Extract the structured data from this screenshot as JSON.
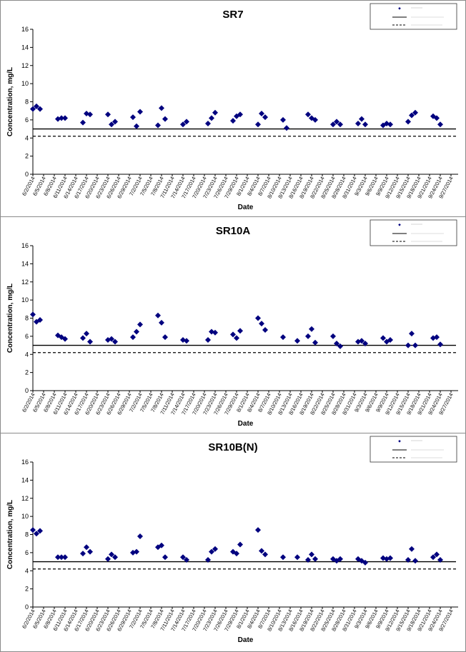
{
  "page": {
    "background": "#ffffff"
  },
  "colors": {
    "marker": "#00007f",
    "line": "#000000",
    "frame": "#8a8a8a"
  },
  "chart_data": [
    {
      "type": "scatter",
      "title": "SR7",
      "xlabel": "Date",
      "ylabel": "Concentration, mg/L",
      "ylim": [
        0,
        16
      ],
      "yticks": [
        0,
        2,
        4,
        6,
        8,
        10,
        12,
        14,
        16
      ],
      "grid": false,
      "legend_position": "top-right",
      "x_tick_labels": [
        "6/2/2014",
        "6/5/2014",
        "6/8/2014",
        "6/11/2014",
        "6/14/2014",
        "6/17/2014",
        "6/20/2014",
        "6/23/2014",
        "6/26/2014",
        "6/29/2014",
        "7/2/2014",
        "7/5/2014",
        "7/8/2014",
        "7/11/2014",
        "7/14/2014",
        "7/17/2014",
        "7/20/2014",
        "7/23/2014",
        "7/26/2014",
        "7/29/2014",
        "8/1/2014",
        "8/4/2014",
        "8/7/2014",
        "8/10/2014",
        "8/13/2014",
        "8/16/2014",
        "8/19/2014",
        "8/22/2014",
        "8/25/2014",
        "8/28/2014",
        "8/31/2014",
        "9/3/2014",
        "9/6/2014",
        "9/9/2014",
        "9/12/2014",
        "9/15/2014",
        "9/18/2014",
        "9/21/2014",
        "9/24/2014",
        "9/27/2014"
      ],
      "series": [
        {
          "type": "scatter",
          "marker": "diamond",
          "color": "#00007f",
          "points": [
            {
              "x": "6/2/2014",
              "y": 7.2
            },
            {
              "x": "6/3/2014",
              "y": 7.5
            },
            {
              "x": "6/4/2014",
              "y": 7.2
            },
            {
              "x": "6/9/2014",
              "y": 6.1
            },
            {
              "x": "6/10/2014",
              "y": 6.2
            },
            {
              "x": "6/11/2014",
              "y": 6.2
            },
            {
              "x": "6/16/2014",
              "y": 5.7
            },
            {
              "x": "6/17/2014",
              "y": 6.7
            },
            {
              "x": "6/18/2014",
              "y": 6.6
            },
            {
              "x": "6/23/2014",
              "y": 6.6
            },
            {
              "x": "6/24/2014",
              "y": 5.5
            },
            {
              "x": "6/25/2014",
              "y": 5.8
            },
            {
              "x": "6/30/2014",
              "y": 6.3
            },
            {
              "x": "7/1/2014",
              "y": 5.3
            },
            {
              "x": "7/2/2014",
              "y": 6.9
            },
            {
              "x": "7/7/2014",
              "y": 5.4
            },
            {
              "x": "7/8/2014",
              "y": 7.3
            },
            {
              "x": "7/9/2014",
              "y": 6.1
            },
            {
              "x": "7/14/2014",
              "y": 5.5
            },
            {
              "x": "7/15/2014",
              "y": 5.8
            },
            {
              "x": "7/21/2014",
              "y": 5.6
            },
            {
              "x": "7/22/2014",
              "y": 6.2
            },
            {
              "x": "7/23/2014",
              "y": 6.8
            },
            {
              "x": "7/28/2014",
              "y": 5.9
            },
            {
              "x": "7/29/2014",
              "y": 6.4
            },
            {
              "x": "7/30/2014",
              "y": 6.6
            },
            {
              "x": "8/4/2014",
              "y": 5.5
            },
            {
              "x": "8/5/2014",
              "y": 6.7
            },
            {
              "x": "8/6/2014",
              "y": 6.3
            },
            {
              "x": "8/11/2014",
              "y": 6.0
            },
            {
              "x": "8/12/2014",
              "y": 5.1
            },
            {
              "x": "8/18/2014",
              "y": 6.6
            },
            {
              "x": "8/19/2014",
              "y": 6.2
            },
            {
              "x": "8/20/2014",
              "y": 6.0
            },
            {
              "x": "8/25/2014",
              "y": 5.5
            },
            {
              "x": "8/26/2014",
              "y": 5.8
            },
            {
              "x": "8/27/2014",
              "y": 5.5
            },
            {
              "x": "9/1/2014",
              "y": 5.6
            },
            {
              "x": "9/2/2014",
              "y": 6.1
            },
            {
              "x": "9/3/2014",
              "y": 5.5
            },
            {
              "x": "9/8/2014",
              "y": 5.4
            },
            {
              "x": "9/9/2014",
              "y": 5.6
            },
            {
              "x": "9/10/2014",
              "y": 5.5
            },
            {
              "x": "9/15/2014",
              "y": 5.8
            },
            {
              "x": "9/16/2014",
              "y": 6.5
            },
            {
              "x": "9/17/2014",
              "y": 6.8
            },
            {
              "x": "9/22/2014",
              "y": 6.4
            },
            {
              "x": "9/23/2014",
              "y": 6.2
            },
            {
              "x": "9/24/2014",
              "y": 5.5
            }
          ]
        },
        {
          "type": "hline",
          "style": "solid",
          "color": "#000000",
          "y": 5.0
        },
        {
          "type": "hline",
          "style": "dashed",
          "color": "#000000",
          "y": 4.2
        }
      ]
    },
    {
      "type": "scatter",
      "title": "SR10A",
      "xlabel": "Date",
      "ylabel": "Concentration, mg/L",
      "ylim": [
        0,
        16
      ],
      "yticks": [
        0,
        2,
        4,
        6,
        8,
        10,
        12,
        14,
        16
      ],
      "grid": false,
      "legend_position": "top-right",
      "x_tick_labels": [
        "6/2/2014",
        "6/5/2014",
        "6/8/2014",
        "6/11/2014",
        "6/14/2014",
        "6/17/2014",
        "6/20/2014",
        "6/23/2014",
        "6/26/2014",
        "6/29/2014",
        "7/2/2014",
        "7/5/2014",
        "7/8/2014",
        "7/11/2014",
        "7/14/2014",
        "7/17/2014",
        "7/20/2014",
        "7/23/2014",
        "7/26/2014",
        "7/29/2014",
        "8/1/2014",
        "8/4/2014",
        "8/7/2014",
        "8/10/2014",
        "8/13/2014",
        "8/16/2014",
        "8/19/2014",
        "8/22/2014",
        "8/25/2014",
        "8/28/2014",
        "8/31/2014",
        "9/3/2014",
        "9/6/2014",
        "9/9/2014",
        "9/12/2014",
        "9/15/2014",
        "9/18/2014",
        "9/21/2014",
        "9/24/2014",
        "9/27/2014"
      ],
      "series": [
        {
          "type": "scatter",
          "marker": "diamond",
          "color": "#00007f",
          "points": [
            {
              "x": "6/2/2014",
              "y": 8.4
            },
            {
              "x": "6/3/2014",
              "y": 7.6
            },
            {
              "x": "6/4/2014",
              "y": 7.8
            },
            {
              "x": "6/9/2014",
              "y": 6.1
            },
            {
              "x": "6/10/2014",
              "y": 5.9
            },
            {
              "x": "6/11/2014",
              "y": 5.7
            },
            {
              "x": "6/16/2014",
              "y": 5.8
            },
            {
              "x": "6/17/2014",
              "y": 6.3
            },
            {
              "x": "6/18/2014",
              "y": 5.4
            },
            {
              "x": "6/23/2014",
              "y": 5.6
            },
            {
              "x": "6/24/2014",
              "y": 5.7
            },
            {
              "x": "6/25/2014",
              "y": 5.4
            },
            {
              "x": "6/30/2014",
              "y": 5.9
            },
            {
              "x": "7/1/2014",
              "y": 6.5
            },
            {
              "x": "7/2/2014",
              "y": 7.3
            },
            {
              "x": "7/7/2014",
              "y": 8.3
            },
            {
              "x": "7/8/2014",
              "y": 7.5
            },
            {
              "x": "7/9/2014",
              "y": 5.9
            },
            {
              "x": "7/14/2014",
              "y": 5.6
            },
            {
              "x": "7/15/2014",
              "y": 5.5
            },
            {
              "x": "7/21/2014",
              "y": 5.6
            },
            {
              "x": "7/22/2014",
              "y": 6.5
            },
            {
              "x": "7/23/2014",
              "y": 6.4
            },
            {
              "x": "7/28/2014",
              "y": 6.2
            },
            {
              "x": "7/29/2014",
              "y": 5.8
            },
            {
              "x": "7/30/2014",
              "y": 6.6
            },
            {
              "x": "8/4/2014",
              "y": 8.0
            },
            {
              "x": "8/5/2014",
              "y": 7.4
            },
            {
              "x": "8/6/2014",
              "y": 6.7
            },
            {
              "x": "8/11/2014",
              "y": 5.9
            },
            {
              "x": "8/15/2014",
              "y": 5.5
            },
            {
              "x": "8/18/2014",
              "y": 6.0
            },
            {
              "x": "8/19/2014",
              "y": 6.8
            },
            {
              "x": "8/20/2014",
              "y": 5.3
            },
            {
              "x": "8/25/2014",
              "y": 6.0
            },
            {
              "x": "8/26/2014",
              "y": 5.2
            },
            {
              "x": "8/27/2014",
              "y": 4.9
            },
            {
              "x": "9/1/2014",
              "y": 5.4
            },
            {
              "x": "9/2/2014",
              "y": 5.5
            },
            {
              "x": "9/3/2014",
              "y": 5.2
            },
            {
              "x": "9/8/2014",
              "y": 5.8
            },
            {
              "x": "9/9/2014",
              "y": 5.4
            },
            {
              "x": "9/10/2014",
              "y": 5.6
            },
            {
              "x": "9/15/2014",
              "y": 5.0
            },
            {
              "x": "9/16/2014",
              "y": 6.3
            },
            {
              "x": "9/17/2014",
              "y": 5.0
            },
            {
              "x": "9/22/2014",
              "y": 5.8
            },
            {
              "x": "9/23/2014",
              "y": 5.9
            },
            {
              "x": "9/24/2014",
              "y": 5.1
            }
          ]
        },
        {
          "type": "hline",
          "style": "solid",
          "color": "#000000",
          "y": 5.0
        },
        {
          "type": "hline",
          "style": "dashed",
          "color": "#000000",
          "y": 4.2
        }
      ]
    },
    {
      "type": "scatter",
      "title": "SR10B(N)",
      "xlabel": "Date",
      "ylabel": "Concentration, mg/L",
      "ylim": [
        0,
        16
      ],
      "yticks": [
        0,
        2,
        4,
        6,
        8,
        10,
        12,
        14,
        16
      ],
      "grid": false,
      "legend_position": "top-right",
      "x_tick_labels": [
        "6/2/2014",
        "6/5/2014",
        "6/8/2014",
        "6/11/2014",
        "6/14/2014",
        "6/17/2014",
        "6/20/2014",
        "6/23/2014",
        "6/26/2014",
        "6/29/2014",
        "7/2/2014",
        "7/5/2014",
        "7/8/2014",
        "7/11/2014",
        "7/14/2014",
        "7/17/2014",
        "7/20/2014",
        "7/23/2014",
        "7/26/2014",
        "7/29/2014",
        "8/1/2014",
        "8/4/2014",
        "8/7/2014",
        "8/10/2014",
        "8/13/2014",
        "8/16/2014",
        "8/19/2014",
        "8/22/2014",
        "8/25/2014",
        "8/28/2014",
        "8/31/2014",
        "9/3/2014",
        "9/6/2014",
        "9/9/2014",
        "9/12/2014",
        "9/15/2014",
        "9/18/2014",
        "9/21/2014",
        "9/24/2014",
        "9/27/2014"
      ],
      "series": [
        {
          "type": "scatter",
          "marker": "diamond",
          "color": "#00007f",
          "points": [
            {
              "x": "6/2/2014",
              "y": 8.5
            },
            {
              "x": "6/3/2014",
              "y": 8.1
            },
            {
              "x": "6/4/2014",
              "y": 8.4
            },
            {
              "x": "6/9/2014",
              "y": 5.5
            },
            {
              "x": "6/10/2014",
              "y": 5.5
            },
            {
              "x": "6/11/2014",
              "y": 5.5
            },
            {
              "x": "6/16/2014",
              "y": 5.9
            },
            {
              "x": "6/17/2014",
              "y": 6.6
            },
            {
              "x": "6/18/2014",
              "y": 6.1
            },
            {
              "x": "6/23/2014",
              "y": 5.3
            },
            {
              "x": "6/24/2014",
              "y": 5.8
            },
            {
              "x": "6/25/2014",
              "y": 5.5
            },
            {
              "x": "6/30/2014",
              "y": 6.0
            },
            {
              "x": "7/1/2014",
              "y": 6.1
            },
            {
              "x": "7/2/2014",
              "y": 7.8
            },
            {
              "x": "7/7/2014",
              "y": 6.6
            },
            {
              "x": "7/8/2014",
              "y": 6.8
            },
            {
              "x": "7/9/2014",
              "y": 5.5
            },
            {
              "x": "7/14/2014",
              "y": 5.5
            },
            {
              "x": "7/15/2014",
              "y": 5.2
            },
            {
              "x": "7/21/2014",
              "y": 5.2
            },
            {
              "x": "7/22/2014",
              "y": 6.1
            },
            {
              "x": "7/23/2014",
              "y": 6.4
            },
            {
              "x": "7/28/2014",
              "y": 6.1
            },
            {
              "x": "7/29/2014",
              "y": 5.9
            },
            {
              "x": "7/30/2014",
              "y": 6.9
            },
            {
              "x": "8/4/2014",
              "y": 8.5
            },
            {
              "x": "8/5/2014",
              "y": 6.2
            },
            {
              "x": "8/6/2014",
              "y": 5.8
            },
            {
              "x": "8/11/2014",
              "y": 5.5
            },
            {
              "x": "8/15/2014",
              "y": 5.5
            },
            {
              "x": "8/18/2014",
              "y": 5.2
            },
            {
              "x": "8/19/2014",
              "y": 5.8
            },
            {
              "x": "8/20/2014",
              "y": 5.3
            },
            {
              "x": "8/25/2014",
              "y": 5.3
            },
            {
              "x": "8/26/2014",
              "y": 5.1
            },
            {
              "x": "8/27/2014",
              "y": 5.3
            },
            {
              "x": "9/1/2014",
              "y": 5.3
            },
            {
              "x": "9/2/2014",
              "y": 5.1
            },
            {
              "x": "9/3/2014",
              "y": 4.9
            },
            {
              "x": "9/8/2014",
              "y": 5.4
            },
            {
              "x": "9/9/2014",
              "y": 5.3
            },
            {
              "x": "9/10/2014",
              "y": 5.4
            },
            {
              "x": "9/15/2014",
              "y": 5.2
            },
            {
              "x": "9/16/2014",
              "y": 6.4
            },
            {
              "x": "9/17/2014",
              "y": 5.1
            },
            {
              "x": "9/22/2014",
              "y": 5.5
            },
            {
              "x": "9/23/2014",
              "y": 5.8
            },
            {
              "x": "9/24/2014",
              "y": 5.2
            }
          ]
        },
        {
          "type": "hline",
          "style": "solid",
          "color": "#000000",
          "y": 5.0
        },
        {
          "type": "hline",
          "style": "dashed",
          "color": "#000000",
          "y": 4.2
        }
      ]
    }
  ]
}
